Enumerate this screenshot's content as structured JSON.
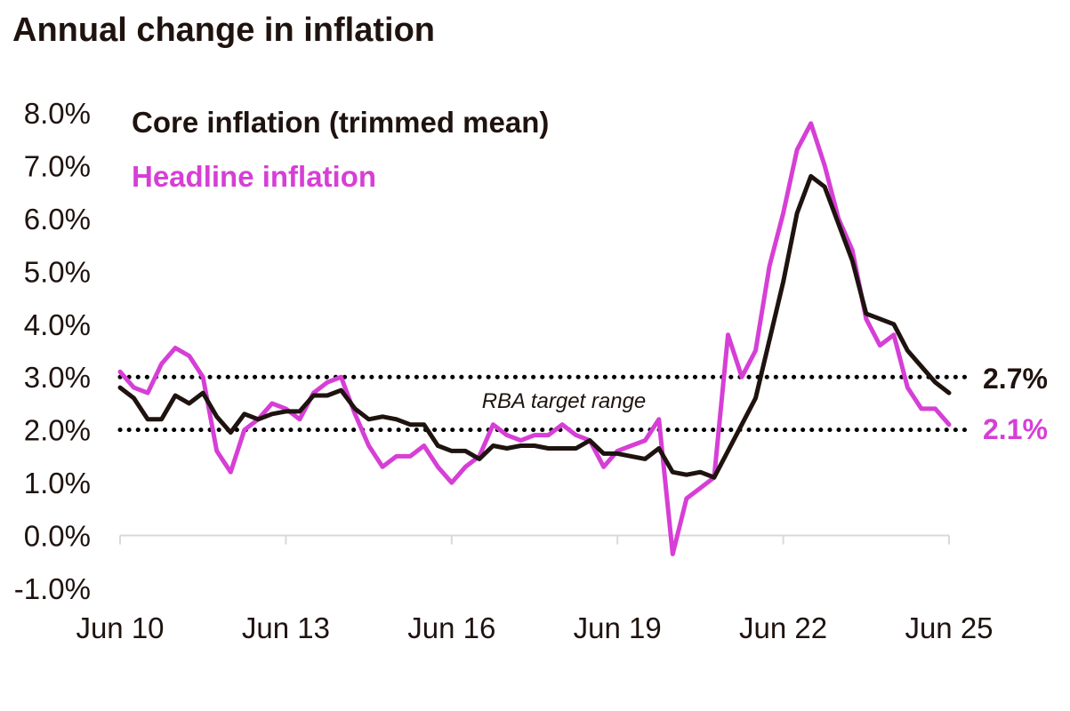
{
  "chart_data": {
    "type": "line",
    "title": "Annual change in inflation",
    "xlabel": "",
    "ylabel": "",
    "x_tick_labels": [
      "Jun 10",
      "Jun 13",
      "Jun 16",
      "Jun 19",
      "Jun 22",
      "Jun 25"
    ],
    "y_tick_labels": [
      "-1.0%",
      "0.0%",
      "1.0%",
      "2.0%",
      "3.0%",
      "4.0%",
      "5.0%",
      "6.0%",
      "7.0%",
      "8.0%"
    ],
    "ylim": [
      -1.0,
      8.0
    ],
    "xlim": [
      "Jun 10",
      "Jun 25"
    ],
    "grid": false,
    "legend_position": "top-left",
    "x": [
      "Jun 10",
      "Sep 10",
      "Dec 10",
      "Mar 11",
      "Jun 11",
      "Sep 11",
      "Dec 11",
      "Mar 12",
      "Jun 12",
      "Sep 12",
      "Dec 12",
      "Mar 13",
      "Jun 13",
      "Sep 13",
      "Dec 13",
      "Mar 14",
      "Jun 14",
      "Sep 14",
      "Dec 14",
      "Mar 15",
      "Jun 15",
      "Sep 15",
      "Dec 15",
      "Mar 16",
      "Jun 16",
      "Sep 16",
      "Dec 16",
      "Mar 17",
      "Jun 17",
      "Sep 17",
      "Dec 17",
      "Mar 18",
      "Jun 18",
      "Sep 18",
      "Dec 18",
      "Mar 19",
      "Jun 19",
      "Sep 19",
      "Dec 19",
      "Mar 20",
      "Jun 20",
      "Sep 20",
      "Dec 20",
      "Mar 21",
      "Jun 21",
      "Sep 21",
      "Dec 21",
      "Mar 22",
      "Jun 22",
      "Sep 22",
      "Dec 22",
      "Mar 23",
      "Jun 23",
      "Sep 23",
      "Dec 23",
      "Mar 24",
      "Jun 24",
      "Sep 24",
      "Dec 24",
      "Mar 25",
      "Jun 25"
    ],
    "series": [
      {
        "name": "Core inflation (trimmed mean)",
        "color": "#1f130f",
        "end_label": "2.7%",
        "values": [
          2.8,
          2.6,
          2.2,
          2.2,
          2.65,
          2.5,
          2.7,
          2.25,
          1.95,
          2.3,
          2.2,
          2.3,
          2.35,
          2.35,
          2.65,
          2.65,
          2.75,
          2.4,
          2.2,
          2.25,
          2.2,
          2.1,
          2.1,
          1.7,
          1.6,
          1.6,
          1.45,
          1.7,
          1.65,
          1.7,
          1.7,
          1.65,
          1.65,
          1.65,
          1.8,
          1.55,
          1.55,
          1.5,
          1.45,
          1.65,
          1.2,
          1.15,
          1.2,
          1.1,
          1.6,
          2.1,
          2.6,
          3.7,
          4.8,
          6.1,
          6.8,
          6.6,
          5.9,
          5.2,
          4.2,
          4.1,
          4.0,
          3.5,
          3.2,
          2.9,
          2.7
        ]
      },
      {
        "name": "Headline inflation",
        "color": "#d63fd6",
        "end_label": "2.1%",
        "values": [
          3.1,
          2.8,
          2.7,
          3.25,
          3.55,
          3.4,
          3.0,
          1.6,
          1.2,
          2.0,
          2.2,
          2.5,
          2.4,
          2.2,
          2.7,
          2.9,
          3.0,
          2.3,
          1.7,
          1.3,
          1.5,
          1.5,
          1.7,
          1.3,
          1.0,
          1.3,
          1.5,
          2.1,
          1.9,
          1.8,
          1.9,
          1.9,
          2.1,
          1.9,
          1.8,
          1.3,
          1.6,
          1.7,
          1.8,
          2.2,
          -0.35,
          0.7,
          0.9,
          1.1,
          3.8,
          3.0,
          3.5,
          5.1,
          6.1,
          7.3,
          7.8,
          7.0,
          6.0,
          5.4,
          4.1,
          3.6,
          3.8,
          2.8,
          2.4,
          2.4,
          2.1
        ]
      }
    ],
    "reference_lines": [
      {
        "value": 3.0,
        "style": "dotted"
      },
      {
        "value": 2.0,
        "style": "dotted"
      }
    ],
    "annotations": [
      {
        "text": "RBA target range"
      }
    ]
  }
}
